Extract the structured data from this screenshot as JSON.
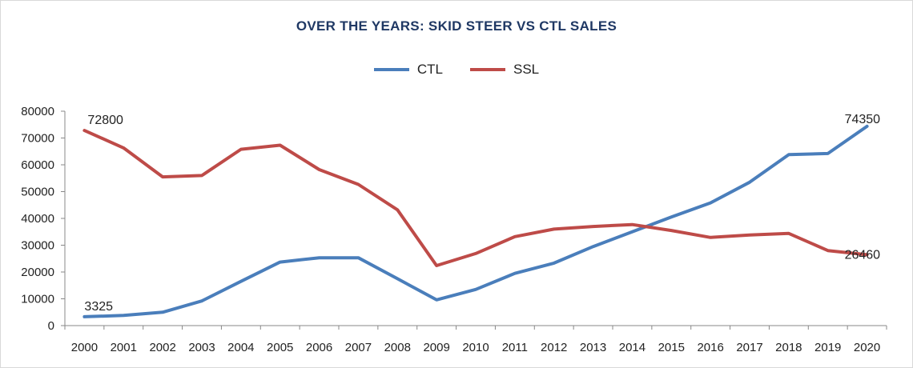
{
  "chart_data": {
    "type": "line",
    "title": "OVER THE YEARS: SKID STEER VS CTL SALES",
    "xlabel": "",
    "ylabel": "",
    "categories": [
      "2000",
      "2001",
      "2002",
      "2003",
      "2004",
      "2005",
      "2006",
      "2007",
      "2008",
      "2009",
      "2010",
      "2011",
      "2012",
      "2013",
      "2014",
      "2015",
      "2016",
      "2017",
      "2018",
      "2019",
      "2020"
    ],
    "ylim": [
      0,
      80000
    ],
    "yticks": [
      "0",
      "10000",
      "20000",
      "30000",
      "40000",
      "50000",
      "60000",
      "70000",
      "80000"
    ],
    "grid": false,
    "legend_position": "top-center",
    "series": [
      {
        "name": "CTL",
        "color": "#4a7ebb",
        "values": [
          3325,
          3800,
          5000,
          9200,
          16500,
          23700,
          25300,
          25300,
          17500,
          9600,
          13500,
          19500,
          23300,
          29500,
          35000,
          40500,
          45800,
          53500,
          63800,
          64200,
          74350
        ]
      },
      {
        "name": "SSL",
        "color": "#be4b48",
        "values": [
          72800,
          66300,
          55500,
          56000,
          65800,
          67300,
          58200,
          52700,
          43200,
          22400,
          26900,
          33200,
          36000,
          37000,
          37700,
          35500,
          32900,
          33800,
          34400,
          28000,
          26460
        ]
      }
    ],
    "annotations": [
      {
        "series": "SSL",
        "index": 0,
        "text": "72800"
      },
      {
        "series": "CTL",
        "index": 0,
        "text": "3325"
      },
      {
        "series": "CTL",
        "index": 20,
        "text": "74350"
      },
      {
        "series": "SSL",
        "index": 20,
        "text": "26460"
      }
    ]
  }
}
